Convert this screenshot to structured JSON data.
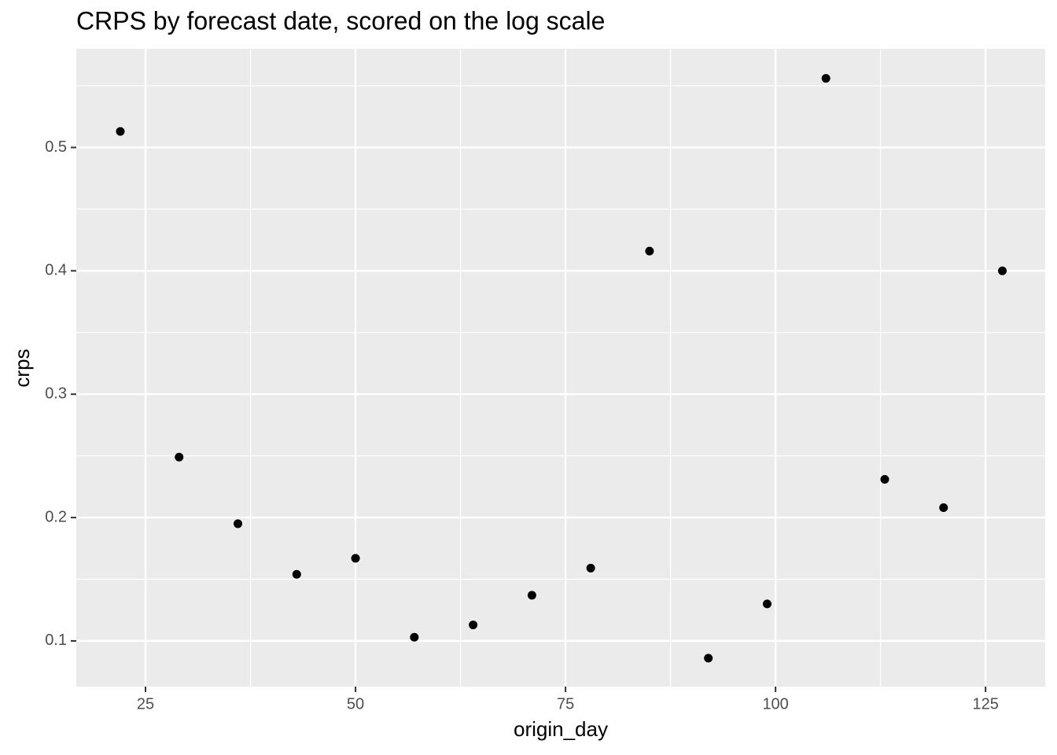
{
  "chart_data": {
    "type": "scatter",
    "title": "CRPS by forecast date, scored on the log scale",
    "x_label": "origin_day",
    "y_label": "crps",
    "x": [
      22,
      29,
      36,
      43,
      50,
      57,
      64,
      71,
      78,
      85,
      92,
      99,
      106,
      113,
      120,
      127
    ],
    "series": [
      {
        "color": "#000000",
        "values": [
          0.513,
          0.249,
          0.195,
          0.154,
          0.167,
          0.103,
          0.113,
          0.137,
          0.159,
          0.416,
          0.086,
          0.13,
          0.556,
          0.231,
          0.208,
          0.4
        ]
      }
    ],
    "xlim": [
      16.76,
      132.1
    ],
    "ylim": [
      0.063,
      0.58
    ],
    "xticks": [
      25,
      50,
      75,
      100,
      125
    ],
    "yticks": [
      0.1,
      0.2,
      0.3,
      0.4,
      0.5
    ],
    "xminorticks": [
      37.5,
      62.5,
      87.5,
      112.5
    ],
    "yminorticks": [
      0.15,
      0.25,
      0.35,
      0.45,
      0.55
    ],
    "grid": true,
    "panel_color": "#ebebeb"
  }
}
